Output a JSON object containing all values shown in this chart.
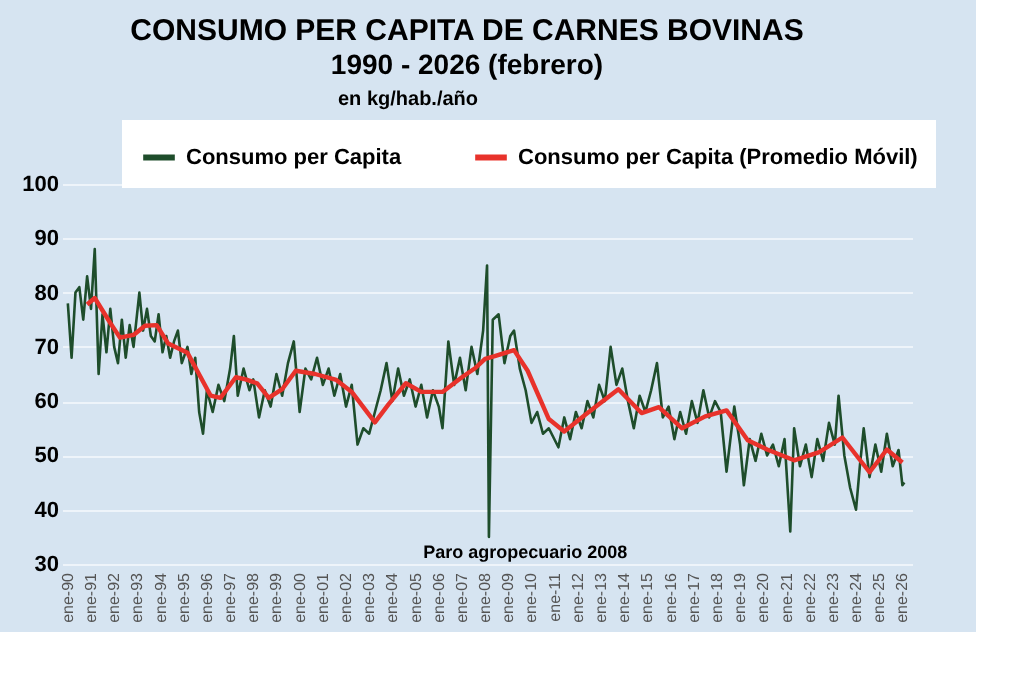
{
  "chart_data": {
    "type": "line",
    "title": "CONSUMO PER CAPITA DE CARNES BOVINAS",
    "subtitle": "1990 - 2026 (febrero)",
    "ylabel": "en kg/hab./año",
    "annotations": [
      "Paro agropecuario 2008"
    ],
    "xlim": [
      "1989-10",
      "2026-06"
    ],
    "xticks": [
      {
        "value": "1990-01",
        "label": "ene-90"
      },
      {
        "value": "1991-01",
        "label": "ene-91"
      },
      {
        "value": "1992-01",
        "label": "ene-92"
      },
      {
        "value": "1993-01",
        "label": "ene-93"
      },
      {
        "value": "1994-01",
        "label": "ene-94"
      },
      {
        "value": "1995-01",
        "label": "ene-95"
      },
      {
        "value": "1996-01",
        "label": "ene-96"
      },
      {
        "value": "1997-01",
        "label": "ene-97"
      },
      {
        "value": "1998-01",
        "label": "ene-98"
      },
      {
        "value": "1999-01",
        "label": "ene-99"
      },
      {
        "value": "2000-01",
        "label": "ene-00"
      },
      {
        "value": "2001-01",
        "label": "ene-01"
      },
      {
        "value": "2002-01",
        "label": "ene-02"
      },
      {
        "value": "2003-01",
        "label": "ene-03"
      },
      {
        "value": "2004-01",
        "label": "ene-04"
      },
      {
        "value": "2005-01",
        "label": "ene-05"
      },
      {
        "value": "2006-01",
        "label": "ene-06"
      },
      {
        "value": "2007-01",
        "label": "ene-07"
      },
      {
        "value": "2008-01",
        "label": "ene-08"
      },
      {
        "value": "2009-01",
        "label": "ene-09"
      },
      {
        "value": "2010-01",
        "label": "ene-10"
      },
      {
        "value": "2011-01",
        "label": "ene-11"
      },
      {
        "value": "2012-01",
        "label": "ene-12"
      },
      {
        "value": "2013-01",
        "label": "ene-13"
      },
      {
        "value": "2014-01",
        "label": "ene-14"
      },
      {
        "value": "2015-01",
        "label": "ene-15"
      },
      {
        "value": "2016-01",
        "label": "ene-16"
      },
      {
        "value": "2017-01",
        "label": "ene-17"
      },
      {
        "value": "2018-01",
        "label": "ene-18"
      },
      {
        "value": "2019-01",
        "label": "ene-19"
      },
      {
        "value": "2020-01",
        "label": "ene-20"
      },
      {
        "value": "2021-01",
        "label": "ene-21"
      },
      {
        "value": "2022-01",
        "label": "ene-22"
      },
      {
        "value": "2023-01",
        "label": "ene-23"
      },
      {
        "value": "2024-01",
        "label": "ene-24"
      },
      {
        "value": "2025-01",
        "label": "ene-25"
      },
      {
        "value": "2026-01",
        "label": "ene-26"
      }
    ],
    "ylim": [
      30,
      100
    ],
    "yticks": [
      30,
      40,
      50,
      60,
      70,
      80,
      90,
      100
    ],
    "grid": "y",
    "legend": "top",
    "line_style": "solid",
    "marker": "none",
    "series": [
      {
        "name": "Consumo per Capita",
        "color": "#1e4d2b",
        "x": [
          "1990-01",
          "1990-03",
          "1990-05",
          "1990-07",
          "1990-09",
          "1990-11",
          "1991-01",
          "1991-03",
          "1991-05",
          "1991-07",
          "1991-09",
          "1991-11",
          "1992-01",
          "1992-03",
          "1992-05",
          "1992-07",
          "1992-09",
          "1992-11",
          "1993-02",
          "1993-04",
          "1993-06",
          "1993-08",
          "1993-10",
          "1993-12",
          "1994-02",
          "1994-04",
          "1994-06",
          "1994-08",
          "1994-10",
          "1994-12",
          "1995-03",
          "1995-05",
          "1995-07",
          "1995-09",
          "1995-11",
          "1996-01",
          "1996-04",
          "1996-07",
          "1996-10",
          "1997-01",
          "1997-03",
          "1997-05",
          "1997-08",
          "1997-11",
          "1998-01",
          "1998-04",
          "1998-07",
          "1998-10",
          "1999-01",
          "1999-04",
          "1999-07",
          "1999-10",
          "2000-01",
          "2000-04",
          "2000-07",
          "2000-10",
          "2001-01",
          "2001-04",
          "2001-07",
          "2001-10",
          "2002-01",
          "2002-04",
          "2002-07",
          "2002-10",
          "2003-01",
          "2003-04",
          "2003-07",
          "2003-10",
          "2004-01",
          "2004-04",
          "2004-07",
          "2004-10",
          "2005-01",
          "2005-04",
          "2005-07",
          "2005-10",
          "2006-01",
          "2006-03",
          "2006-06",
          "2006-09",
          "2006-12",
          "2007-03",
          "2007-06",
          "2007-09",
          "2007-12",
          "2008-02",
          "2008-03",
          "2008-05",
          "2008-08",
          "2008-11",
          "2009-02",
          "2009-04",
          "2009-07",
          "2009-10",
          "2010-01",
          "2010-04",
          "2010-07",
          "2010-10",
          "2011-03",
          "2011-06",
          "2011-09",
          "2011-12",
          "2012-03",
          "2012-06",
          "2012-09",
          "2012-12",
          "2013-03",
          "2013-06",
          "2013-09",
          "2013-12",
          "2014-03",
          "2014-06",
          "2014-09",
          "2014-12",
          "2015-03",
          "2015-06",
          "2015-09",
          "2015-12",
          "2016-03",
          "2016-06",
          "2016-09",
          "2016-12",
          "2017-03",
          "2017-06",
          "2017-09",
          "2017-12",
          "2018-03",
          "2018-06",
          "2018-10",
          "2019-01",
          "2019-03",
          "2019-06",
          "2019-09",
          "2019-12",
          "2020-03",
          "2020-06",
          "2020-09",
          "2020-12",
          "2021-03",
          "2021-05",
          "2021-08",
          "2021-11",
          "2022-02",
          "2022-05",
          "2022-08",
          "2022-11",
          "2023-02",
          "2023-04",
          "2023-07",
          "2023-10",
          "2024-01",
          "2024-03",
          "2024-05",
          "2024-08",
          "2024-11",
          "2025-02",
          "2025-05",
          "2025-08",
          "2025-11",
          "2026-01",
          "2026-02"
        ],
        "values": [
          78,
          68,
          80,
          81,
          75,
          83,
          77,
          88,
          65,
          76,
          69,
          77,
          70,
          67,
          75,
          68,
          74,
          70,
          80,
          73,
          77,
          72,
          71,
          76,
          69,
          72,
          68,
          71,
          73,
          67,
          70,
          65,
          68,
          58,
          54,
          62,
          58,
          63,
          60,
          66,
          72,
          61,
          66,
          62,
          64,
          57,
          62,
          59,
          65,
          61,
          67,
          71,
          58,
          66,
          64,
          68,
          63,
          66,
          61,
          65,
          59,
          63,
          52,
          55,
          54,
          58,
          62,
          67,
          60,
          66,
          61,
          64,
          59,
          63,
          57,
          62,
          59,
          55,
          71,
          63,
          68,
          62,
          70,
          65,
          73,
          85,
          35,
          75,
          76,
          67,
          72,
          73,
          66,
          62,
          56,
          58,
          54,
          55,
          51.5,
          57,
          53,
          58,
          55,
          60,
          57,
          63,
          60,
          70,
          63,
          66,
          60,
          55,
          61,
          58,
          62,
          67,
          57,
          59,
          53,
          58,
          54,
          60,
          56,
          62,
          57,
          60,
          58,
          47,
          59,
          52,
          44.5,
          53,
          49,
          54,
          50,
          52,
          48,
          53,
          36,
          55,
          48,
          52,
          46,
          53,
          49,
          56,
          52,
          61,
          50,
          44,
          40,
          48,
          55,
          46,
          52,
          47,
          54,
          48,
          51,
          44.5,
          45
        ]
      },
      {
        "name": "Consumo per Capita (Promedio Móvil)",
        "color": "#e8322b",
        "x": [
          "1990-11",
          "1991-03",
          "1991-11",
          "1992-04",
          "1992-11",
          "1993-05",
          "1993-11",
          "1994-05",
          "1995-03",
          "1996-03",
          "1996-08",
          "1997-04",
          "1997-09",
          "1998-03",
          "1998-09",
          "1999-04",
          "1999-11",
          "2000-09",
          "2001-08",
          "2002-04",
          "2003-04",
          "2003-11",
          "2004-08",
          "2005-04",
          "2006-03",
          "2007-01",
          "2007-08",
          "2008-01",
          "2008-06",
          "2009-04",
          "2009-11",
          "2010-10",
          "2011-06",
          "2012-06",
          "2013-10",
          "2014-10",
          "2015-07",
          "2016-07",
          "2017-07",
          "2018-06",
          "2019-05",
          "2020-03",
          "2021-05",
          "2022-06",
          "2023-06",
          "2024-08",
          "2025-05",
          "2026-01"
        ],
        "values": [
          77.8,
          79,
          74.4,
          71.7,
          72.2,
          73.9,
          74,
          70.6,
          68.9,
          61,
          60.6,
          64.4,
          64,
          63.3,
          60.6,
          62.2,
          65.6,
          65,
          63.9,
          61.7,
          56.1,
          59.4,
          63.3,
          61.7,
          61.7,
          64.4,
          66.1,
          67.8,
          68.3,
          69.4,
          65.6,
          56.7,
          54.4,
          57.8,
          62.2,
          57.8,
          58.9,
          55,
          57.2,
          58.3,
          52.8,
          51.1,
          49.1,
          50.6,
          53.3,
          46.9,
          51.1,
          48.7
        ]
      }
    ]
  }
}
